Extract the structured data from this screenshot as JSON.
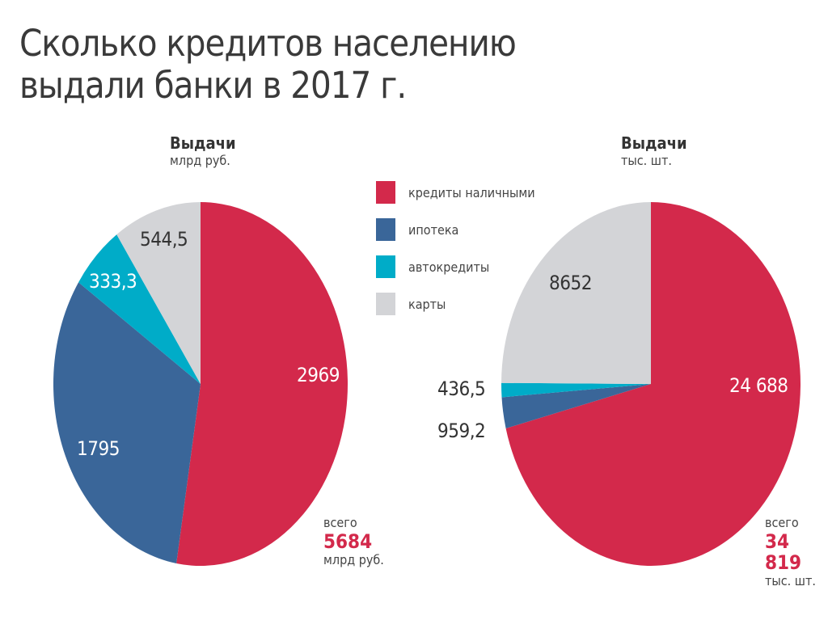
{
  "title_line1": "Сколько кредитов населению",
  "title_line2": "выдали банки в 2017 г.",
  "legend": [
    {
      "label": "кредиты наличными",
      "color": "#d3294b"
    },
    {
      "label": "ипотека",
      "color": "#3a6699"
    },
    {
      "label": "автокредиты",
      "color": "#00acc8"
    },
    {
      "label": "карты",
      "color": "#d3d4d7"
    }
  ],
  "chart_data": [
    {
      "type": "pie",
      "title": "Выдачи",
      "unit": "млрд руб.",
      "categories": [
        "кредиты наличными",
        "ипотека",
        "автокредиты",
        "карты"
      ],
      "values": [
        2969,
        1795,
        333.3,
        544.5
      ],
      "labels": [
        "2969",
        "1795",
        "333,3",
        "544,5"
      ],
      "total_label": "всего",
      "total": "5684",
      "total_unit": "млрд руб."
    },
    {
      "type": "pie",
      "title": "Выдачи",
      "unit": "тыс. шт.",
      "categories": [
        "кредиты наличными",
        "ипотека",
        "автокредиты",
        "карты"
      ],
      "values": [
        24688,
        959.2,
        436.5,
        8652
      ],
      "labels": [
        "24 688",
        "959,2",
        "436,5",
        "8652"
      ],
      "total_label": "всего",
      "total": "34 819",
      "total_unit": "тыс. шт."
    }
  ]
}
